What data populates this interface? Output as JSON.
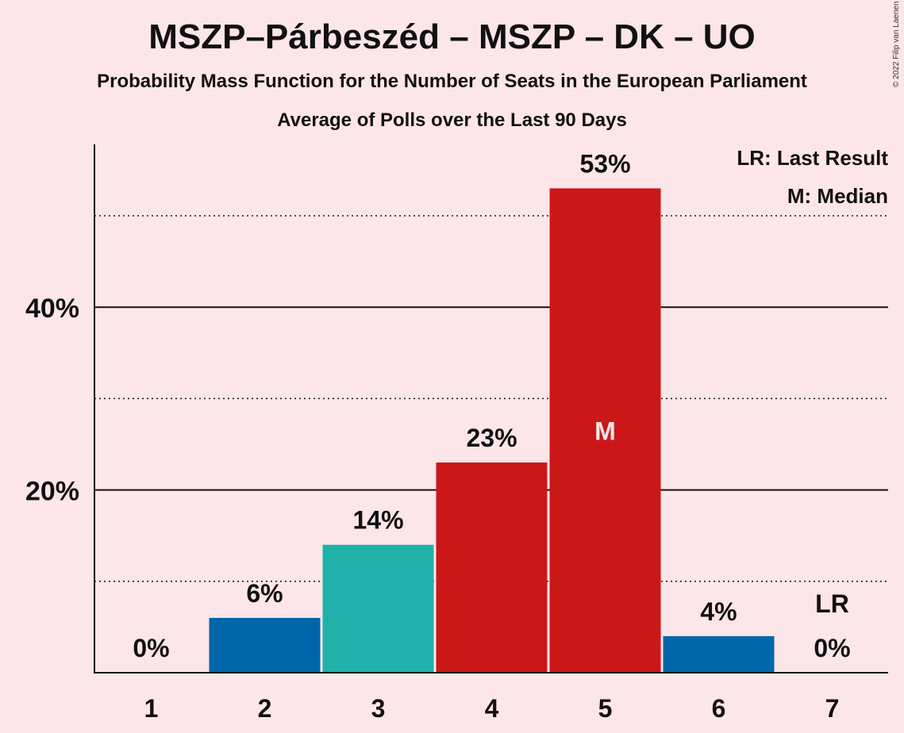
{
  "title": "MSZP–Párbeszéd – MSZP – DK – UO",
  "subtitle": "Probability Mass Function for the Number of Seats in the European Parliament",
  "subtitle2": "Average of Polls over the Last 90 Days",
  "copyright": "© 2022 Filip van Laenen",
  "legend": {
    "last_result": "LR: Last Result",
    "median": "M: Median"
  },
  "colors": {
    "blue": "#0066aa",
    "teal": "#20b2aa",
    "red": "#cc1719",
    "background": "#fde6e9"
  },
  "chart_data": {
    "type": "bar",
    "categories": [
      "1",
      "2",
      "3",
      "4",
      "5",
      "6",
      "7"
    ],
    "values": [
      0,
      6,
      14,
      23,
      53,
      4,
      0
    ],
    "labels": [
      "0%",
      "6%",
      "14%",
      "23%",
      "53%",
      "4%",
      "0%"
    ],
    "bar_colors": [
      "#0066aa",
      "#0066aa",
      "#20b2aa",
      "#cc1719",
      "#cc1719",
      "#0066aa",
      "#0066aa"
    ],
    "median_index": 4,
    "median_label": "M",
    "last_result_index": 6,
    "last_result_label": "LR",
    "ylim": [
      0,
      58
    ],
    "yticks": [
      20,
      40
    ],
    "ytick_labels": [
      "20%",
      "40%"
    ],
    "minor_gridlines": [
      10,
      30,
      50
    ]
  }
}
